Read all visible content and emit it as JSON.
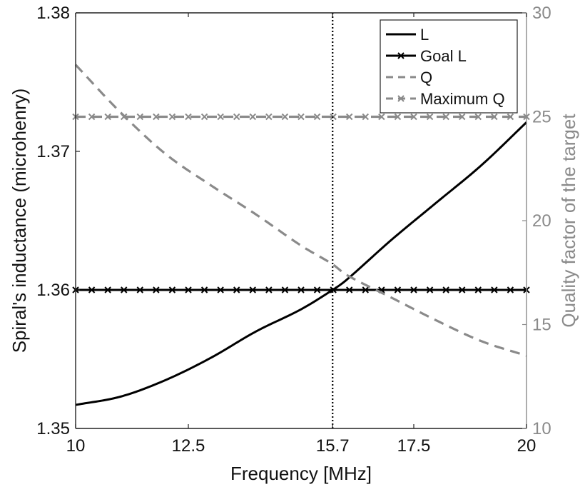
{
  "chart_data": {
    "type": "line",
    "xlabel": "Frequency [MHz]",
    "ylabel_left": "Spiral's inductance (microhenry)",
    "ylabel_right": "Quality factor of the target",
    "xlim": [
      10,
      20
    ],
    "ylim_left": [
      1.35,
      1.38
    ],
    "ylim_right": [
      10,
      30
    ],
    "x_ticks": [
      10,
      12.5,
      15.7,
      17.5,
      20
    ],
    "x_tick_labels": [
      "10",
      "12.5",
      "15.7",
      "17.5",
      "20"
    ],
    "y_left_ticks": [
      1.35,
      1.36,
      1.37,
      1.38
    ],
    "y_left_tick_labels": [
      "1.35",
      "1.36",
      "1.37",
      "1.38"
    ],
    "y_right_ticks": [
      10,
      15,
      20,
      25,
      30
    ],
    "y_right_tick_labels": [
      "10",
      "15",
      "20",
      "25",
      "30"
    ],
    "vertical_marker_x": 15.7,
    "legend_position": "top-right",
    "series": [
      {
        "name": "L",
        "axis": "left",
        "style": "solid",
        "color": "#000000",
        "x": [
          10,
          11,
          12,
          13,
          14,
          15,
          15.7,
          16,
          17,
          18,
          19,
          20
        ],
        "y": [
          1.3517,
          1.3523,
          1.3535,
          1.3551,
          1.357,
          1.3586,
          1.36,
          1.3607,
          1.3636,
          1.3663,
          1.369,
          1.3721
        ]
      },
      {
        "name": "Goal L",
        "axis": "left",
        "style": "solid-x",
        "color": "#000000",
        "x": [
          10,
          20
        ],
        "y": [
          1.36,
          1.36
        ]
      },
      {
        "name": "Q",
        "axis": "right",
        "style": "dashed",
        "color": "#8a8a8a",
        "x": [
          10,
          11,
          12,
          13,
          14,
          15,
          15.7,
          16,
          17,
          18,
          19,
          20
        ],
        "y": [
          27.5,
          25.2,
          23.2,
          21.7,
          20.3,
          18.8,
          17.9,
          17.4,
          16.3,
          15.2,
          14.2,
          13.5
        ]
      },
      {
        "name": "Maximum Q",
        "axis": "right",
        "style": "dashed-x",
        "color": "#8a8a8a",
        "x": [
          10,
          20
        ],
        "y": [
          25,
          25
        ]
      }
    ]
  }
}
